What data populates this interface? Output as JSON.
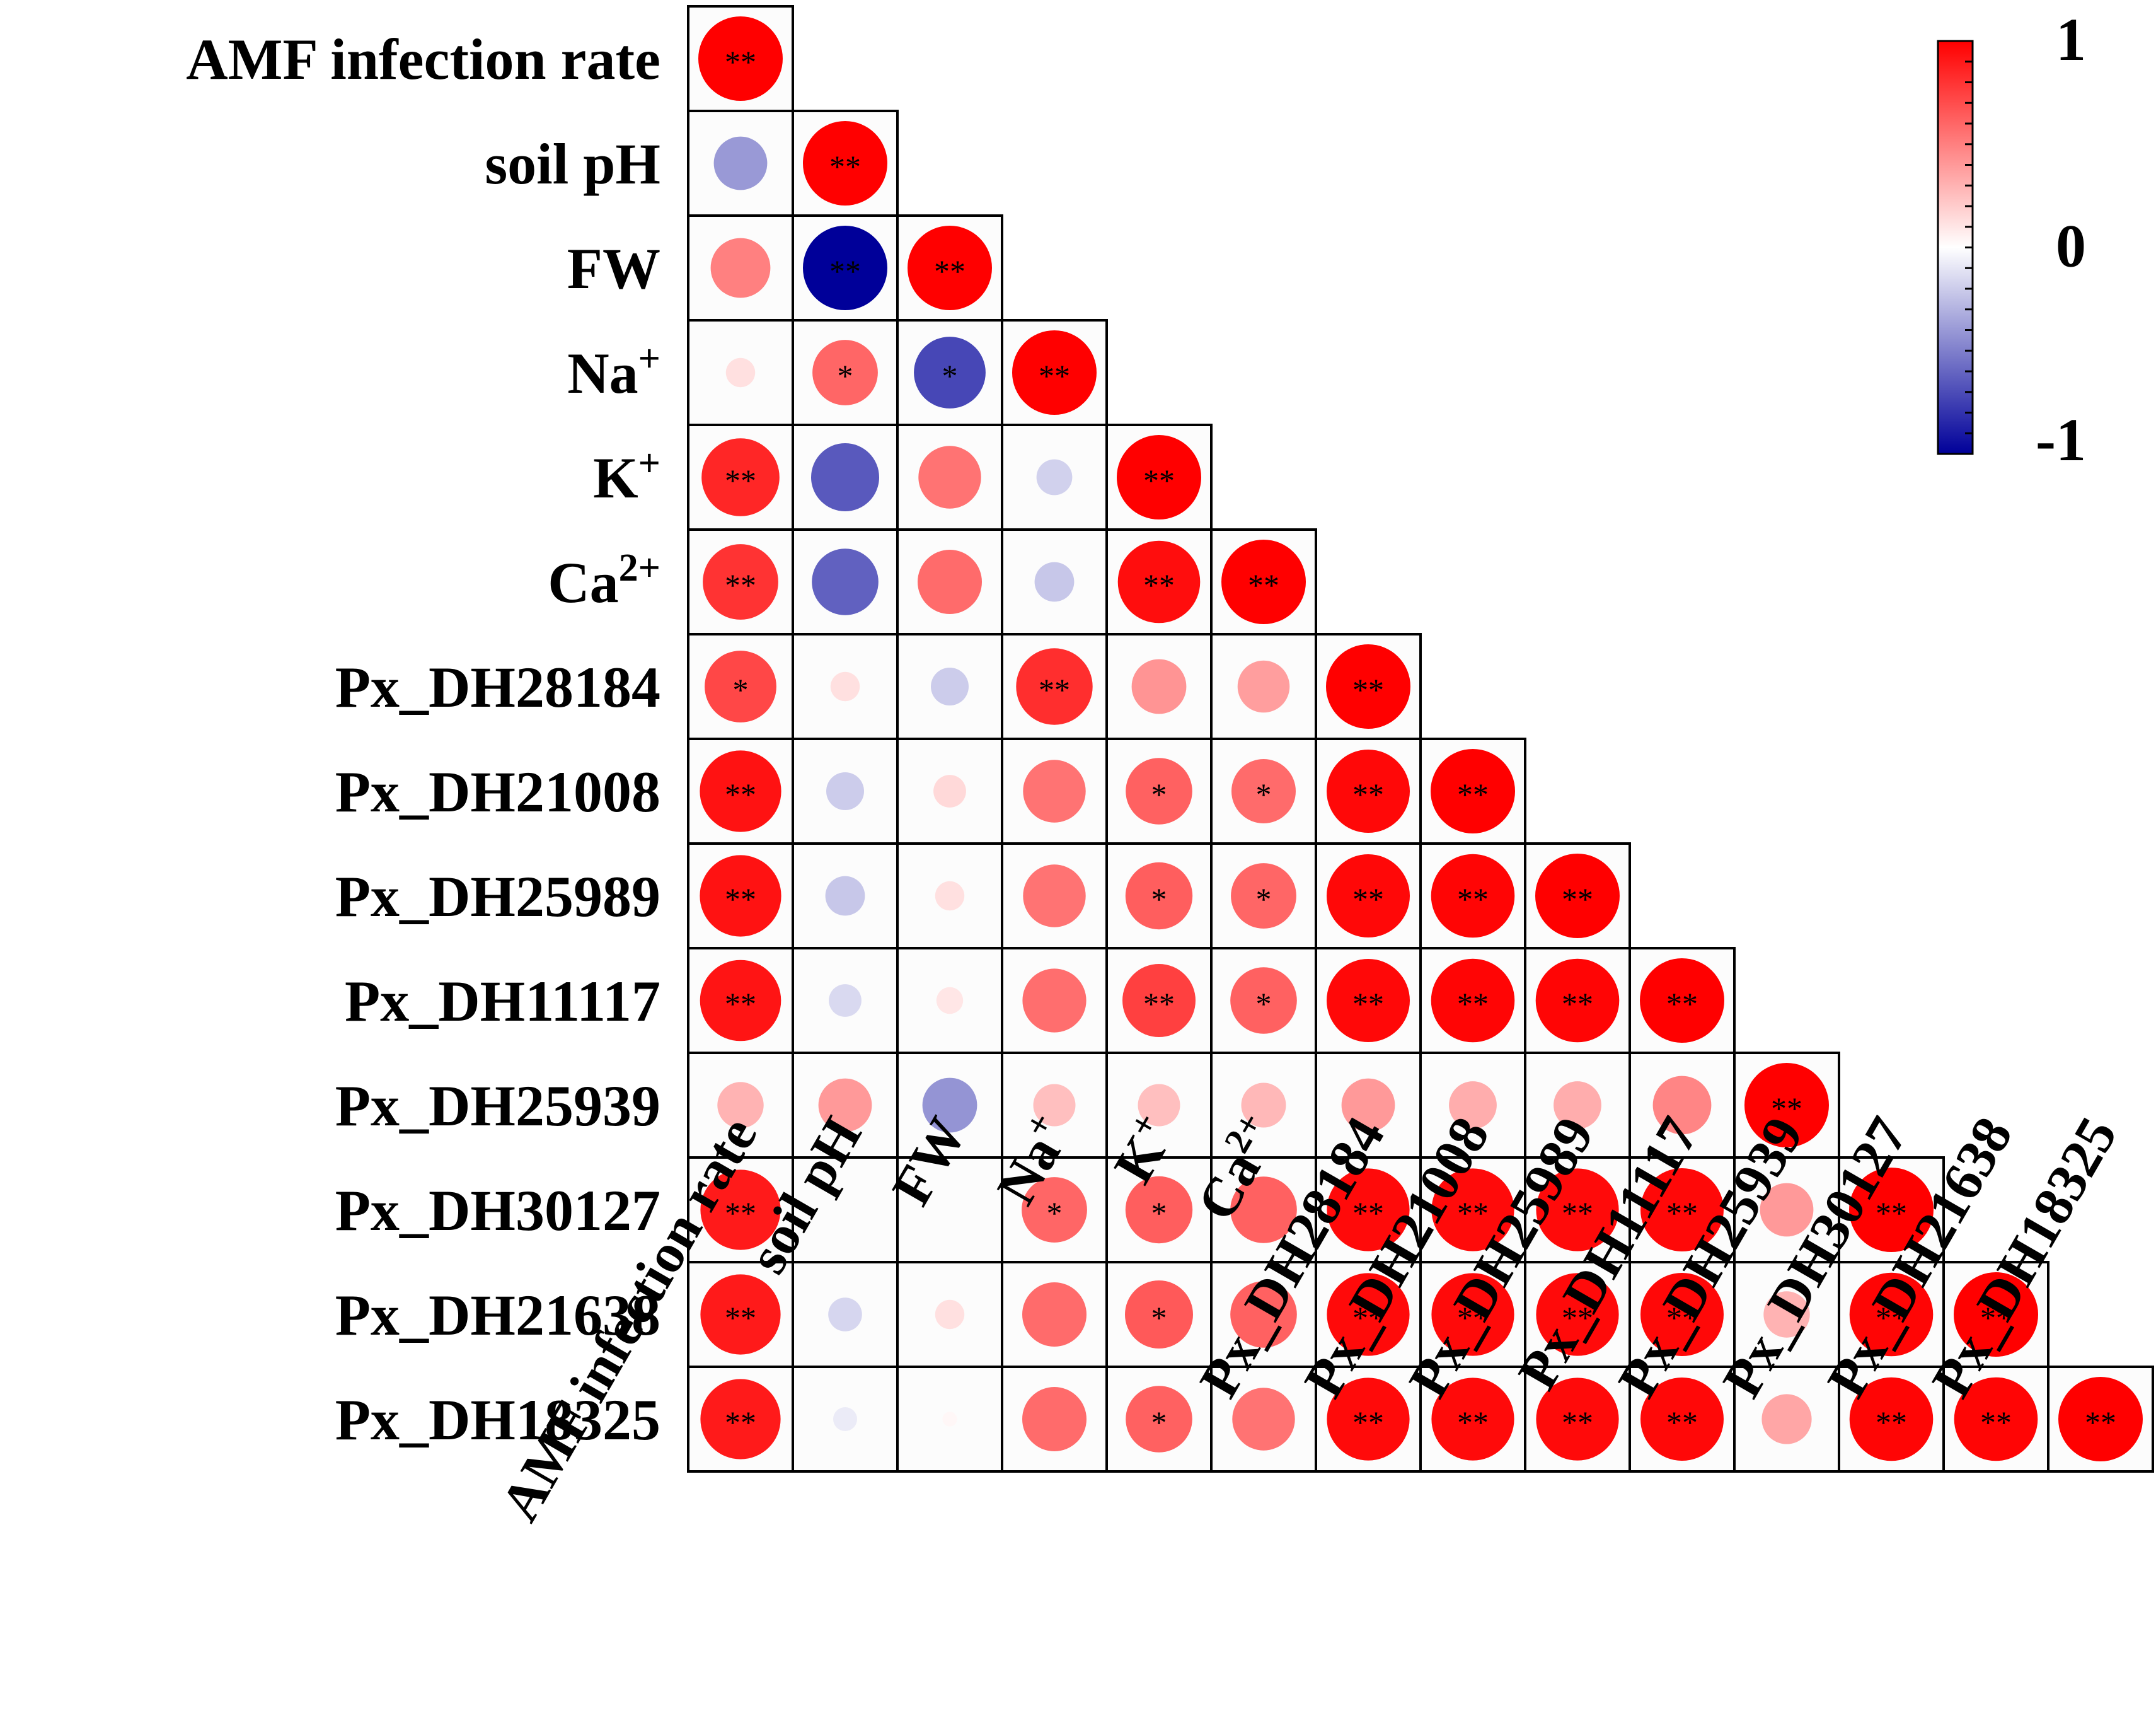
{
  "chart_data": {
    "type": "heatmap",
    "subtype": "lower-triangular correlation matrix (circle size & color = r)",
    "variables": [
      {
        "name": "AMF infection rate",
        "sup": ""
      },
      {
        "name": "soil pH",
        "sup": ""
      },
      {
        "name": "FW",
        "sup": ""
      },
      {
        "name": "Na",
        "sup": "+"
      },
      {
        "name": "K",
        "sup": "+"
      },
      {
        "name": "Ca",
        "sup": "2+"
      },
      {
        "name": "Px_DH28184",
        "sup": ""
      },
      {
        "name": "Px_DH21008",
        "sup": ""
      },
      {
        "name": "Px_DH25989",
        "sup": ""
      },
      {
        "name": "Px_DH11117",
        "sup": ""
      },
      {
        "name": "Px_DH25939",
        "sup": ""
      },
      {
        "name": "Px_DH30127",
        "sup": ""
      },
      {
        "name": "Px_DH21638",
        "sup": ""
      },
      {
        "name": "Px_DH18325",
        "sup": ""
      }
    ],
    "matrix": [
      [
        1.0
      ],
      [
        -0.4,
        1.0
      ],
      [
        0.5,
        -1.0,
        1.0
      ],
      [
        0.12,
        0.6,
        -0.72,
        1.0
      ],
      [
        0.85,
        -0.65,
        0.55,
        -0.18,
        1.0
      ],
      [
        0.8,
        -0.62,
        0.58,
        -0.22,
        0.95,
        1.0
      ],
      [
        0.72,
        0.12,
        -0.2,
        0.82,
        0.42,
        0.38,
        1.0
      ],
      [
        0.93,
        -0.2,
        0.15,
        0.55,
        0.62,
        0.58,
        0.97,
        1.0
      ],
      [
        0.93,
        -0.22,
        0.12,
        0.55,
        0.63,
        0.6,
        0.97,
        0.98,
        1.0
      ],
      [
        0.92,
        -0.15,
        0.1,
        0.57,
        0.75,
        0.62,
        0.97,
        0.98,
        0.98,
        1.0
      ],
      [
        0.3,
        0.4,
        -0.42,
        0.25,
        0.25,
        0.28,
        0.4,
        0.32,
        0.32,
        0.48,
        1.0
      ],
      [
        0.9,
        0.0,
        0.0,
        0.6,
        0.63,
        0.62,
        0.96,
        0.96,
        0.96,
        0.97,
        0.4,
        1.0
      ],
      [
        0.9,
        -0.16,
        0.12,
        0.58,
        0.65,
        0.62,
        0.96,
        0.96,
        0.96,
        0.97,
        0.3,
        0.98,
        1.0
      ],
      [
        0.9,
        -0.08,
        0.03,
        0.58,
        0.62,
        0.55,
        0.96,
        0.96,
        0.96,
        0.97,
        0.35,
        0.98,
        0.98,
        1.0
      ]
    ],
    "significance": [
      [
        "**"
      ],
      [
        "",
        "**"
      ],
      [
        "",
        "**",
        "**"
      ],
      [
        "",
        "*",
        "*",
        "**"
      ],
      [
        "**",
        "",
        "",
        "",
        "**"
      ],
      [
        "**",
        "",
        "",
        "",
        "**",
        "**"
      ],
      [
        "*",
        "",
        "",
        "**",
        "",
        "",
        "**"
      ],
      [
        "**",
        "",
        "",
        "",
        "*",
        "*",
        "**",
        "**"
      ],
      [
        "**",
        "",
        "",
        "",
        "*",
        "*",
        "**",
        "**",
        "**"
      ],
      [
        "**",
        "",
        "",
        "",
        "**",
        "*",
        "**",
        "**",
        "**",
        "**"
      ],
      [
        "",
        "",
        "",
        "",
        "",
        "",
        "",
        "",
        "",
        "",
        "**"
      ],
      [
        "**",
        "",
        "",
        "*",
        "*",
        "",
        "**",
        "**",
        "**",
        "**",
        "",
        "**"
      ],
      [
        "**",
        "",
        "",
        "",
        "*",
        "",
        "**",
        "**",
        "**",
        "**",
        "",
        "**",
        "**"
      ],
      [
        "**",
        "",
        "",
        "",
        "*",
        "",
        "**",
        "**",
        "**",
        "**",
        "",
        "**",
        "**",
        "**"
      ]
    ],
    "color_scale": {
      "min": -1,
      "max": 1,
      "low_color": "#000099",
      "mid_color": "#ffffff",
      "high_color": "#ff0000",
      "tick_labels": [
        "1",
        "0",
        "-1"
      ]
    },
    "legend_position": "top-right"
  }
}
